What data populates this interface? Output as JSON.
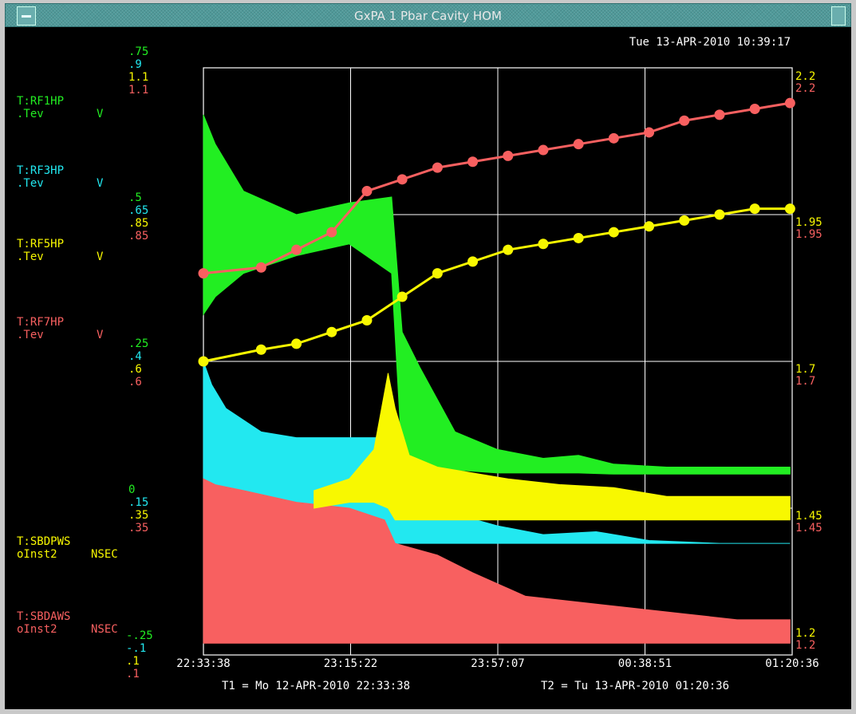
{
  "window": {
    "title": "GxPA 1 Pbar Cavity HOM"
  },
  "timestamp": "Tue 13-APR-2010 10:39:17",
  "colors": {
    "green": "#22ee22",
    "cyan": "#22e8f0",
    "yellow": "#f8f800",
    "red": "#f86060",
    "white": "#ffffff",
    "background": "#000000"
  },
  "left_scales": [
    [
      "0",
      ".15",
      ".35",
      ".35"
    ],
    [
      ".25",
      ".4",
      ".6",
      ".6"
    ],
    [
      ".5",
      ".65",
      ".85",
      ".85"
    ],
    [
      ".75",
      ".9",
      "1.1",
      "1.1"
    ]
  ],
  "left_extra_scale": [
    "-.25",
    "-.1",
    ".1",
    ".1"
  ],
  "right_scales": [
    [
      "1.2",
      "1.2"
    ],
    [
      "1.45",
      "1.45"
    ],
    [
      "1.7",
      "1.7"
    ],
    [
      "1.95",
      "1.95"
    ],
    [
      "2.2",
      "2.2"
    ]
  ],
  "channels": [
    {
      "name": "T:RF1HP",
      "sub": ".Tev",
      "unit": "V",
      "color": "green"
    },
    {
      "name": "T:RF3HP",
      "sub": ".Tev",
      "unit": "V",
      "color": "cyan"
    },
    {
      "name": "T:RF5HP",
      "sub": ".Tev",
      "unit": "V",
      "color": "yellow"
    },
    {
      "name": "T:RF7HP",
      "sub": ".Tev",
      "unit": "V",
      "color": "red"
    },
    {
      "name": "T:SBDPWS",
      "sub": "oInst2",
      "unit": "NSEC",
      "color": "yellow"
    },
    {
      "name": "T:SBDAWS",
      "sub": "oInst2",
      "unit": "NSEC",
      "color": "red"
    }
  ],
  "x_ticks": [
    "22:33:38",
    "23:15:22",
    "23:57:07",
    "00:38:51",
    "01:20:36"
  ],
  "t1": "T1 = Mo 12-APR-2010 22:33:38",
  "t2": "T2 = Tu 13-APR-2010 01:20:36",
  "chart_data": {
    "type": "line",
    "xlim": [
      "22:33:38",
      "01:20:36"
    ],
    "series": [
      {
        "name": "T:RF1HP",
        "color": "green",
        "unit": "V",
        "ylim": [
          -0.25,
          0.75
        ],
        "x": [
          "22:33:38",
          "22:37",
          "22:45",
          "23:00",
          "23:15",
          "23:27",
          "23:30",
          "23:35",
          "23:45",
          "23:57",
          "24:10",
          "24:20",
          "24:30",
          "24:45",
          "01:00",
          "01:20"
        ],
        "upper": [
          0.67,
          0.62,
          0.54,
          0.5,
          0.52,
          0.53,
          0.3,
          0.24,
          0.13,
          0.1,
          0.085,
          0.09,
          0.075,
          0.07,
          0.07,
          0.07
        ],
        "lower": [
          0.33,
          0.36,
          0.4,
          0.43,
          0.45,
          0.4,
          0.08,
          0.07,
          0.065,
          0.06,
          0.06,
          0.06,
          0.058,
          0.058,
          0.058,
          0.058
        ]
      },
      {
        "name": "T:RF3HP",
        "color": "cyan",
        "unit": "V",
        "ylim": [
          -0.1,
          0.9
        ],
        "x": [
          "22:33:38",
          "22:36",
          "22:40",
          "22:50",
          "23:00",
          "23:15",
          "23:27",
          "23:28",
          "23:35",
          "23:45",
          "23:57",
          "24:10",
          "24:25",
          "24:40",
          "01:00",
          "01:20"
        ],
        "upper": [
          0.4,
          0.36,
          0.32,
          0.28,
          0.27,
          0.27,
          0.27,
          0.19,
          0.17,
          0.14,
          0.12,
          0.105,
          0.11,
          0.095,
          0.09,
          0.09
        ],
        "lower": [
          0.09,
          0.09,
          0.09,
          0.09,
          0.09,
          0.09,
          0.09,
          0.09,
          0.09,
          0.09,
          0.09,
          0.09,
          0.09,
          0.09,
          0.09,
          0.09
        ]
      },
      {
        "name": "T:RF5HP",
        "color": "yellow",
        "unit": "V",
        "ylim": [
          0.1,
          1.1
        ],
        "x": [
          "23:05",
          "23:15",
          "23:22",
          "23:26",
          "23:28",
          "23:32",
          "23:40",
          "23:50",
          "24:00",
          "24:15",
          "24:30",
          "24:45",
          "01:00",
          "01:20"
        ],
        "upper": [
          0.38,
          0.4,
          0.45,
          0.58,
          0.52,
          0.44,
          0.42,
          0.41,
          0.4,
          0.39,
          0.385,
          0.37,
          0.37,
          0.37
        ],
        "lower": [
          0.35,
          0.36,
          0.36,
          0.35,
          0.33,
          0.33,
          0.33,
          0.33,
          0.33,
          0.33,
          0.33,
          0.33,
          0.33,
          0.33
        ]
      },
      {
        "name": "T:RF7HP",
        "color": "red",
        "unit": "V",
        "ylim": [
          0.1,
          1.1
        ],
        "x": [
          "22:33:38",
          "22:37",
          "22:45",
          "23:00",
          "23:15",
          "23:25",
          "23:28",
          "23:40",
          "23:50",
          "24:05",
          "24:20",
          "24:35",
          "24:50",
          "01:05",
          "01:20"
        ],
        "upper": [
          0.4,
          0.39,
          0.38,
          0.36,
          0.35,
          0.33,
          0.29,
          0.27,
          0.24,
          0.2,
          0.19,
          0.18,
          0.17,
          0.16,
          0.16
        ],
        "lower": [
          0.12,
          0.12,
          0.12,
          0.12,
          0.12,
          0.12,
          0.12,
          0.12,
          0.12,
          0.12,
          0.12,
          0.12,
          0.12,
          0.12,
          0.12
        ]
      },
      {
        "name": "T:SBDPWS",
        "color": "yellow",
        "unit": "NSEC",
        "ylim": [
          1.2,
          2.2
        ],
        "x": [
          "22:33:38",
          "22:50",
          "23:00",
          "23:10",
          "23:20",
          "23:30",
          "23:40",
          "23:50",
          "24:00",
          "24:10",
          "24:20",
          "24:30",
          "24:40",
          "24:50",
          "01:00",
          "01:10",
          "01:20"
        ],
        "values": [
          1.7,
          1.72,
          1.73,
          1.75,
          1.77,
          1.81,
          1.85,
          1.87,
          1.89,
          1.9,
          1.91,
          1.92,
          1.93,
          1.94,
          1.95,
          1.96,
          1.96
        ]
      },
      {
        "name": "T:SBDAWS",
        "color": "red",
        "unit": "NSEC",
        "ylim": [
          1.2,
          2.2
        ],
        "x": [
          "22:33:38",
          "22:50",
          "23:00",
          "23:10",
          "23:20",
          "23:30",
          "23:40",
          "23:50",
          "24:00",
          "24:10",
          "24:20",
          "24:30",
          "24:40",
          "24:50",
          "01:00",
          "01:10",
          "01:20"
        ],
        "values": [
          1.85,
          1.86,
          1.89,
          1.92,
          1.99,
          2.01,
          2.03,
          2.04,
          2.05,
          2.06,
          2.07,
          2.08,
          2.09,
          2.11,
          2.12,
          2.13,
          2.14
        ]
      }
    ],
    "grid": true
  }
}
